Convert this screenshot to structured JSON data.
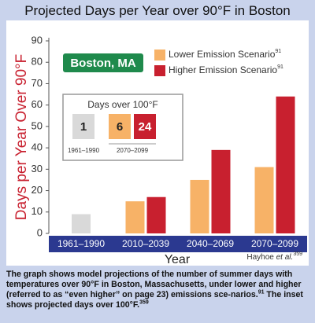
{
  "chart_data": {
    "type": "bar",
    "title": "Projected Days per Year over 90°F in Boston",
    "y_label": "Days per Year Over 90°F",
    "x_label": "Year",
    "location": "Boston, MA",
    "categories": [
      "1961–1990",
      "2010–2039",
      "2040–2069",
      "2070–2099"
    ],
    "baseline": {
      "color": "#d9d9d9",
      "values": [
        9,
        null,
        null,
        null
      ]
    },
    "series": [
      {
        "name": "Lower Emission Scenario",
        "footnote": "91",
        "color": "#f7b267",
        "values": [
          null,
          15,
          25,
          31
        ]
      },
      {
        "name": "Higher Emission Scenario",
        "footnote": "91",
        "color": "#c8202f",
        "values": [
          null,
          17,
          39,
          64
        ]
      }
    ],
    "ylim": [
      0,
      90
    ],
    "yticks": [
      0,
      10,
      20,
      30,
      40,
      50,
      60,
      70,
      80,
      90
    ],
    "inset": {
      "title": "Days over 100°F",
      "items": [
        {
          "value": 1,
          "color": "#d9d9d9"
        },
        {
          "value": 6,
          "color": "#f7b267"
        },
        {
          "value": 24,
          "color": "#c8202f"
        }
      ],
      "periods": [
        "1961–1990",
        "2070–2099"
      ]
    },
    "source": {
      "author": "Hayhoe ",
      "etal": "et al.",
      "ref": "359"
    }
  },
  "caption": [
    {
      "text": "The graph shows model projections of the number of summer days with temperatures over 90°F in Boston, Massachusetts, under lower and higher (referred to as “even higher” on page 23) emissions sce-narios."
    },
    {
      "sup": "91"
    },
    {
      "text": " The inset shows projected days over 100°F."
    },
    {
      "sup": "359"
    }
  ]
}
